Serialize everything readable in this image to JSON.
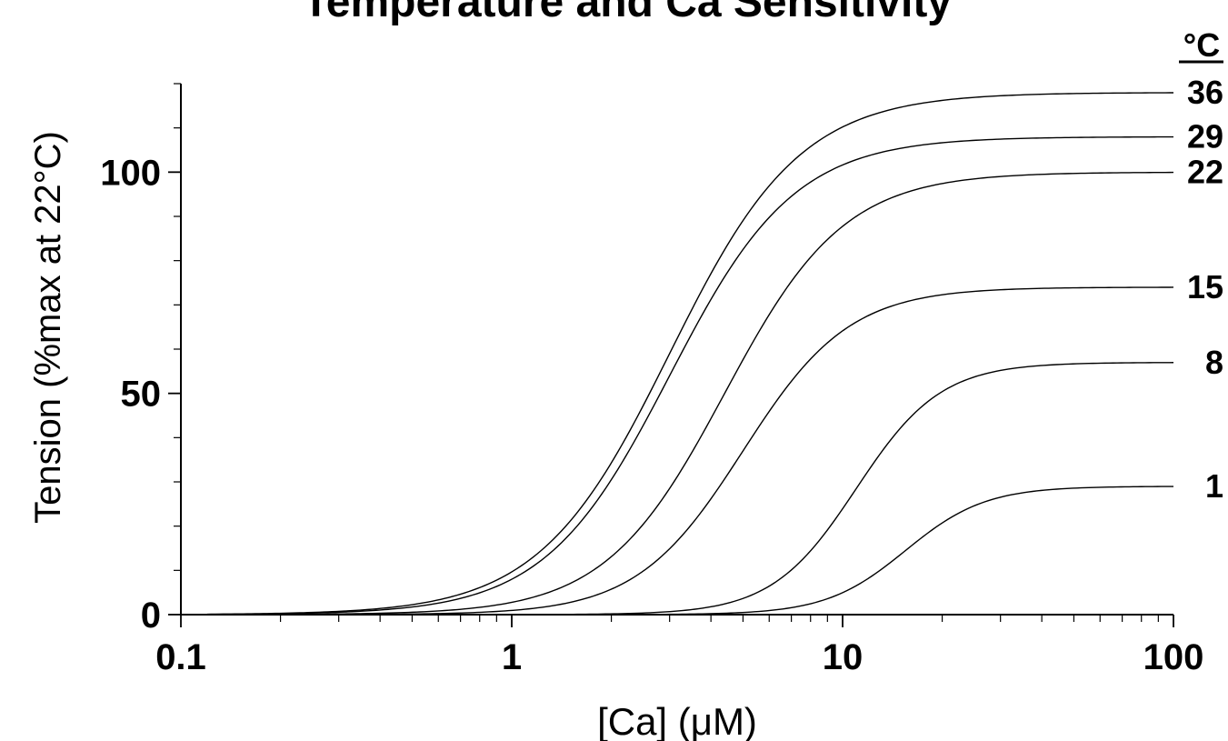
{
  "chart_data": {
    "type": "line",
    "title": "Temperature and Ca Sensitivity",
    "xlabel": "[Ca] (μM)",
    "ylabel": "Tension (%max at 22°C)",
    "x_scale": "log",
    "xlim": [
      0.1,
      100
    ],
    "ylim": [
      0,
      120
    ],
    "x_ticks": [
      {
        "value": 0.1,
        "label": "0.1"
      },
      {
        "value": 1,
        "label": "1"
      },
      {
        "value": 10,
        "label": "10"
      },
      {
        "value": 100,
        "label": "100"
      }
    ],
    "y_ticks": [
      {
        "value": 0,
        "label": "0"
      },
      {
        "value": 50,
        "label": "50"
      },
      {
        "value": 100,
        "label": "100"
      }
    ],
    "legend_title": "°C",
    "series": [
      {
        "name": "36",
        "max": 118,
        "ec50_uM": 3.0,
        "hill": 2.2
      },
      {
        "name": "29",
        "max": 108,
        "ec50_uM": 3.0,
        "hill": 2.3
      },
      {
        "name": "22",
        "max": 100,
        "ec50_uM": 4.4,
        "hill": 2.4
      },
      {
        "name": "15",
        "max": 74,
        "ec50_uM": 5.0,
        "hill": 2.7
      },
      {
        "name": "8",
        "max": 57,
        "ec50_uM": 11.0,
        "hill": 3.4
      },
      {
        "name": "1",
        "max": 29,
        "ec50_uM": 15.5,
        "hill": 3.6
      }
    ]
  }
}
